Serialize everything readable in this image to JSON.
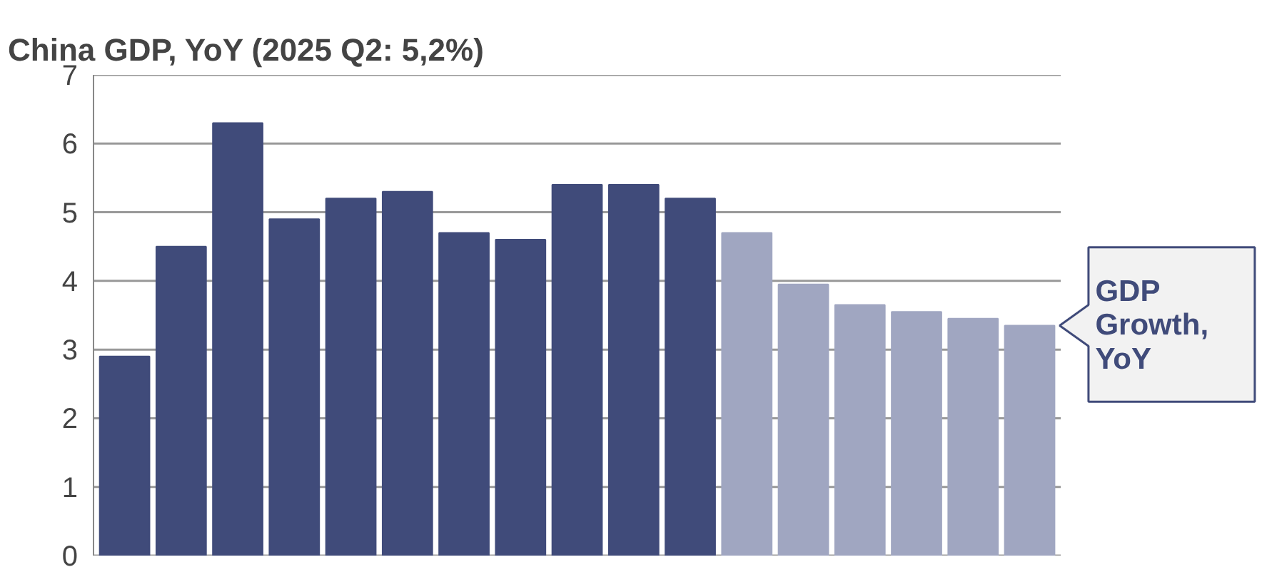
{
  "chart_data": {
    "type": "bar",
    "title": "China GDP, YoY  (2025 Q2: 5,2%)",
    "categories": [
      null,
      null,
      null,
      null,
      null,
      null,
      null,
      null,
      null,
      null,
      null,
      null,
      null,
      null,
      null,
      null,
      null
    ],
    "series": [
      {
        "name": "GDP Growth, YoY",
        "colors": [
          "#404b7a",
          "#404b7a",
          "#404b7a",
          "#404b7a",
          "#404b7a",
          "#404b7a",
          "#404b7a",
          "#404b7a",
          "#404b7a",
          "#404b7a",
          "#404b7a",
          "#a0a6c1",
          "#a0a6c1",
          "#a0a6c1",
          "#a0a6c1",
          "#a0a6c1",
          "#a0a6c1"
        ],
        "values": [
          2.9,
          4.5,
          6.3,
          4.9,
          5.2,
          5.3,
          4.7,
          4.6,
          5.4,
          5.4,
          5.2,
          4.7,
          3.95,
          3.65,
          3.55,
          3.45,
          3.35
        ]
      }
    ],
    "ylim": [
      0,
      7
    ],
    "yticks": [
      0,
      1,
      2,
      3,
      4,
      5,
      6,
      7
    ],
    "grid": "y"
  }
}
